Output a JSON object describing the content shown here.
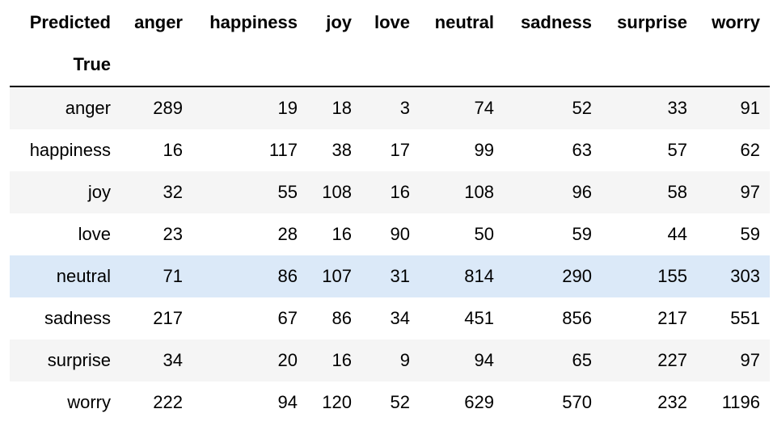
{
  "table": {
    "header_corner": "Predicted",
    "index_name": "True",
    "columns": [
      "anger",
      "happiness",
      "joy",
      "love",
      "neutral",
      "sadness",
      "surprise",
      "worry"
    ],
    "highlight_row": 4,
    "rows": [
      {
        "label": "anger",
        "values": [
          "289",
          "19",
          "18",
          "3",
          "74",
          "52",
          "33",
          "91"
        ]
      },
      {
        "label": "happiness",
        "values": [
          "16",
          "117",
          "38",
          "17",
          "99",
          "63",
          "57",
          "62"
        ]
      },
      {
        "label": "joy",
        "values": [
          "32",
          "55",
          "108",
          "16",
          "108",
          "96",
          "58",
          "97"
        ]
      },
      {
        "label": "love",
        "values": [
          "23",
          "28",
          "16",
          "90",
          "50",
          "59",
          "44",
          "59"
        ]
      },
      {
        "label": "neutral",
        "values": [
          "71",
          "86",
          "107",
          "31",
          "814",
          "290",
          "155",
          "303"
        ]
      },
      {
        "label": "sadness",
        "values": [
          "217",
          "67",
          "86",
          "34",
          "451",
          "856",
          "217",
          "551"
        ]
      },
      {
        "label": "surprise",
        "values": [
          "34",
          "20",
          "16",
          "9",
          "94",
          "65",
          "227",
          "97"
        ]
      },
      {
        "label": "worry",
        "values": [
          "222",
          "94",
          "120",
          "52",
          "629",
          "570",
          "232",
          "1196"
        ]
      }
    ]
  },
  "colors": {
    "stripe": "#f5f5f5",
    "hover": "#dbe9f8",
    "rule": "#000000"
  }
}
